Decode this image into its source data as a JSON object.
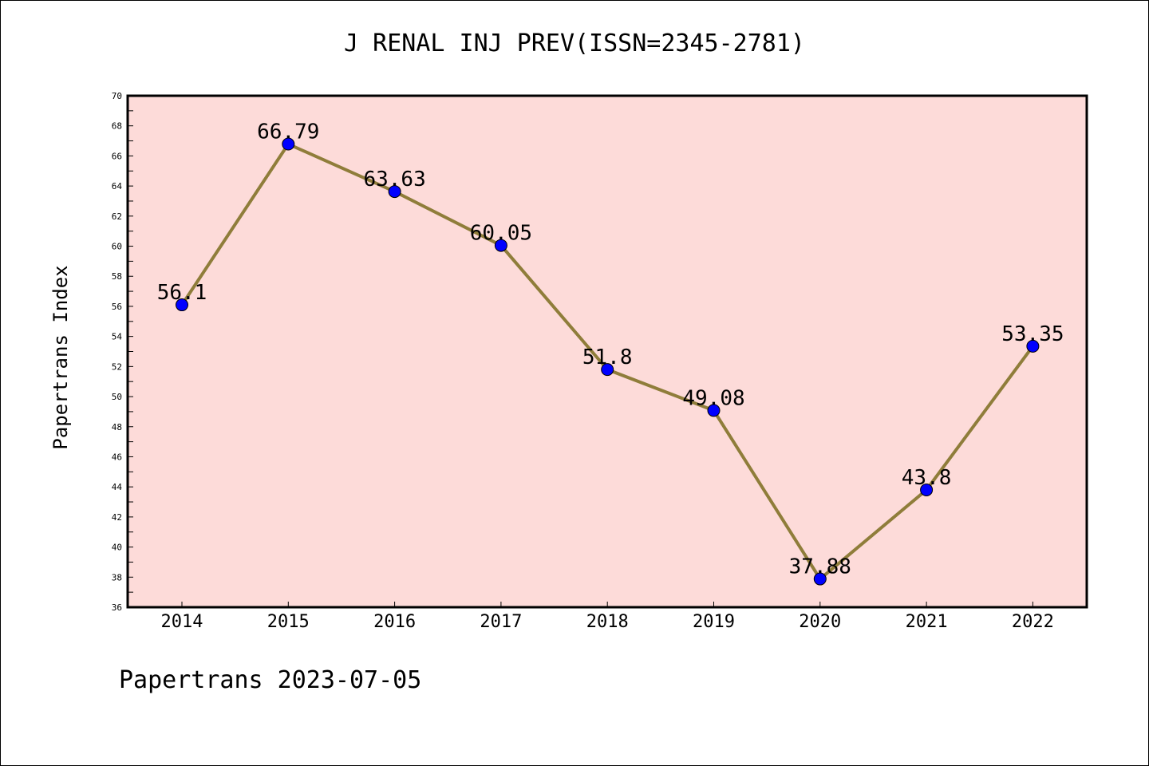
{
  "chart_data": {
    "type": "line",
    "title": "J RENAL INJ PREV(ISSN=2345-2781)",
    "xlabel": "",
    "ylabel": "Papertrans Index",
    "categories": [
      "2014",
      "2015",
      "2016",
      "2017",
      "2018",
      "2019",
      "2020",
      "2021",
      "2022"
    ],
    "series": [
      {
        "values": [
          56.1,
          66.79,
          63.63,
          60.05,
          51.8,
          49.08,
          37.88,
          43.8,
          53.35
        ],
        "labels": [
          "56.1",
          "66.79",
          "63.63",
          "60.05",
          "51.8",
          "49.08",
          "37.88",
          "43.8",
          "53.35"
        ]
      }
    ],
    "ylim": [
      36,
      70
    ],
    "yticks": [
      "36",
      "38",
      "40",
      "42",
      "44",
      "46",
      "48",
      "50",
      "52",
      "54",
      "56",
      "58",
      "60",
      "62",
      "64",
      "66",
      "68",
      "70"
    ],
    "grid": false,
    "legend": "none",
    "colors": {
      "plot_background": "#fddbd9",
      "line": "#8f7d3a",
      "marker": "#0000ff"
    }
  },
  "footer": "Papertrans 2023-07-05"
}
